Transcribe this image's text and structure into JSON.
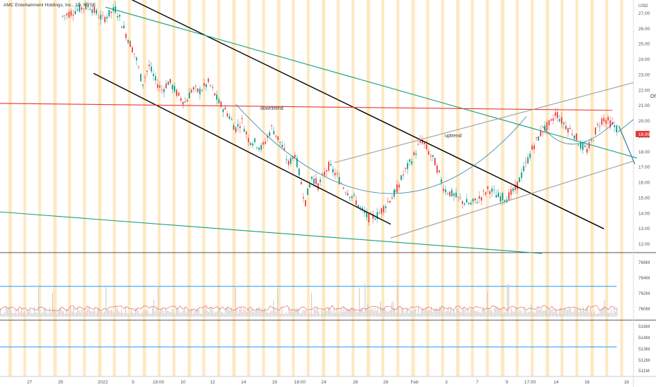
{
  "header": {
    "symbol_title": "AMC Entertainment Holdings, Inc., 1D, NYSE"
  },
  "axis": {
    "currency": "USD"
  },
  "colors": {
    "candle_up": "#26a69a",
    "candle_down": "#ef5350",
    "session_band": "#fde9c2",
    "channel": "#000000",
    "trend_teal": "#1a9e82",
    "resistance": "#e53935",
    "uptrend_channel": "#9e9e9e",
    "curve": "#2a7fa8",
    "level_blue": "#2196f3",
    "price_badge": "#e53935"
  },
  "price_badge": "18.99",
  "cut_label": "Of",
  "chart_data": {
    "type": "candlestick",
    "title": "AMC Entertainment Holdings, Inc., 1D, NYSE",
    "y_unit": "USD",
    "ylim": [
      11.5,
      27.5
    ],
    "y_ticks": [
      "12.00",
      "13.00",
      "14.00",
      "15.00",
      "16.00",
      "17.00",
      "18.00",
      "19.00",
      "20.00",
      "21.00",
      "22.00",
      "23.00",
      "24.00",
      "25.00",
      "26.00",
      "27.00"
    ],
    "x_ticks": [
      "27",
      "29",
      "2022",
      "5",
      "18:00",
      "10",
      "12",
      "14",
      "19",
      "18:00",
      "24",
      "26",
      "28",
      "Feb",
      "3",
      "7",
      "9",
      "17:00",
      "14",
      "16",
      "18"
    ],
    "price_points": [
      [
        0,
        26.8
      ],
      [
        0.05,
        27.3
      ],
      [
        0.08,
        27.5
      ],
      [
        0.12,
        26.6
      ],
      [
        0.16,
        27.3
      ],
      [
        0.19,
        25.7
      ],
      [
        0.22,
        24.2
      ],
      [
        0.24,
        22.4
      ],
      [
        0.26,
        23.6
      ],
      [
        0.28,
        22.6
      ],
      [
        0.3,
        22.0
      ],
      [
        0.32,
        22.6
      ],
      [
        0.35,
        21.6
      ],
      [
        0.37,
        21.2
      ],
      [
        0.39,
        22.1
      ],
      [
        0.41,
        21.9
      ],
      [
        0.44,
        22.5
      ],
      [
        0.47,
        21.2
      ],
      [
        0.5,
        20.4
      ],
      [
        0.52,
        19.5
      ],
      [
        0.54,
        20.0
      ],
      [
        0.56,
        18.8
      ],
      [
        0.58,
        18.6
      ],
      [
        0.6,
        18.2
      ],
      [
        0.63,
        19.6
      ],
      [
        0.66,
        18.4
      ],
      [
        0.68,
        17.2
      ],
      [
        0.7,
        17.9
      ],
      [
        0.73,
        14.7
      ],
      [
        0.75,
        16.4
      ],
      [
        0.77,
        15.8
      ],
      [
        0.8,
        17.1
      ],
      [
        0.82,
        16.6
      ],
      [
        0.85,
        15.6
      ],
      [
        0.88,
        14.9
      ],
      [
        0.9,
        14.2
      ],
      [
        0.92,
        13.7
      ],
      [
        0.95,
        13.9
      ],
      [
        0.98,
        14.8
      ],
      [
        1.0,
        15.3
      ]
    ],
    "price_points_2": [
      [
        0,
        15.3
      ],
      [
        0.04,
        16.6
      ],
      [
        0.08,
        17.6
      ],
      [
        0.12,
        18.8
      ],
      [
        0.15,
        18.0
      ],
      [
        0.18,
        17.3
      ],
      [
        0.22,
        15.6
      ],
      [
        0.26,
        15.2
      ],
      [
        0.3,
        14.8
      ],
      [
        0.34,
        14.6
      ],
      [
        0.38,
        15.0
      ],
      [
        0.42,
        15.6
      ],
      [
        0.46,
        15.1
      ],
      [
        0.5,
        15.0
      ],
      [
        0.54,
        15.6
      ],
      [
        0.58,
        17.0
      ],
      [
        0.62,
        18.4
      ],
      [
        0.66,
        19.4
      ],
      [
        0.7,
        19.9
      ],
      [
        0.72,
        20.6
      ],
      [
        0.74,
        20.1
      ],
      [
        0.77,
        19.6
      ],
      [
        0.8,
        19.2
      ],
      [
        0.83,
        18.4
      ],
      [
        0.86,
        18.1
      ],
      [
        0.88,
        18.7
      ],
      [
        0.9,
        19.5
      ],
      [
        0.93,
        20.2
      ],
      [
        0.96,
        19.9
      ],
      [
        1.0,
        19.4
      ]
    ],
    "volume_ticks": [
      "766M",
      "764M",
      "762M",
      "760M"
    ],
    "indicator_ticks": [
      "516M",
      "514M",
      "513M",
      "512M",
      "511M"
    ],
    "annotations": [
      {
        "label": "downtrend"
      },
      {
        "label": "uptrend"
      }
    ],
    "lines": [
      {
        "name": "upper channel",
        "color": "#000000",
        "from": [
          155,
          28.6
        ],
        "to": [
          858,
          13.0
        ]
      },
      {
        "name": "lower channel",
        "color": "#000000",
        "from": [
          133,
          23.1
        ],
        "to": [
          555,
          13.3
        ]
      },
      {
        "name": "teal downtrend",
        "color": "#1a9e82",
        "from": [
          150,
          27.4
        ],
        "to": [
          905,
          17.6
        ]
      },
      {
        "name": "long teal",
        "color": "#1a9e82",
        "from": [
          0,
          14.1
        ],
        "to": [
          770,
          11.4
        ]
      },
      {
        "name": "resistance",
        "color": "#e53935",
        "from": [
          0,
          21.15
        ],
        "to": [
          870,
          20.7
        ]
      },
      {
        "name": "uptrend upper",
        "color": "#9e9e9e",
        "from": [
          475,
          17.3
        ],
        "to": [
          900,
          22.5
        ]
      },
      {
        "name": "uptrend lower",
        "color": "#9e9e9e",
        "from": [
          555,
          12.4
        ],
        "to": [
          900,
          17.4
        ]
      }
    ]
  }
}
